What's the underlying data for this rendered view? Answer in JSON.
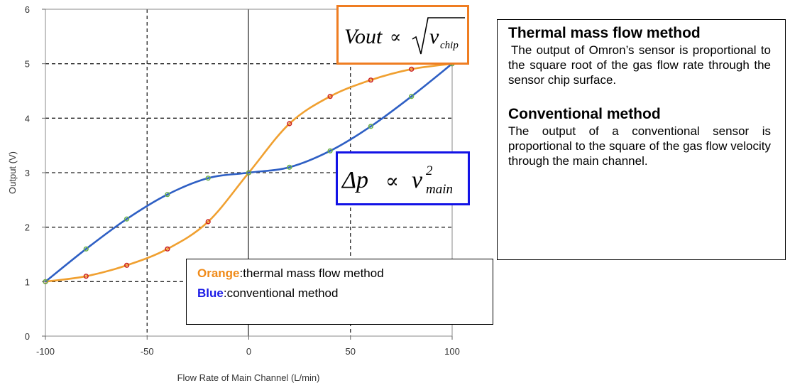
{
  "chart_data": {
    "type": "line",
    "xlabel": "Flow Rate of Main Channel (L/min)",
    "ylabel": "Output (V)",
    "xlim": [
      -100,
      100
    ],
    "ylim": [
      0,
      6
    ],
    "xticks": [
      -100,
      -50,
      0,
      50,
      100
    ],
    "xtick_labels": [
      "-100",
      "-50",
      "0",
      "50",
      "100"
    ],
    "yticks": [
      0,
      1,
      2,
      3,
      4,
      5,
      6
    ],
    "ytick_labels": [
      "0",
      "1",
      "2",
      "3",
      "4",
      "5",
      "6"
    ],
    "grid": "dashed",
    "series": [
      {
        "name": "thermal mass flow method",
        "color": "#f0a030",
        "marker_color": "#cc2222",
        "x": [
          -100,
          -80,
          -60,
          -40,
          -20,
          0,
          20,
          40,
          60,
          80,
          100
        ],
        "y": [
          1.0,
          1.1,
          1.3,
          1.6,
          2.1,
          3.0,
          3.9,
          4.4,
          4.7,
          4.9,
          5.0
        ]
      },
      {
        "name": "conventional method",
        "color": "#2e5fc4",
        "marker_color": "#6ab04c",
        "x": [
          -100,
          -80,
          -60,
          -40,
          -20,
          0,
          20,
          40,
          60,
          80,
          100
        ],
        "y": [
          1.0,
          1.6,
          2.15,
          2.6,
          2.9,
          3.0,
          3.1,
          3.4,
          3.85,
          4.4,
          5.0
        ]
      }
    ]
  },
  "equations": {
    "thermal": {
      "lhs": "Vout",
      "rel": "∝",
      "var": "v",
      "sub": "chip",
      "color": "#ef7d22"
    },
    "conventional": {
      "lhs": "Δp",
      "rel": "∝",
      "var": "v",
      "sup": "2",
      "sub": "main",
      "color": "#1313e6"
    }
  },
  "legend": {
    "orange_key": "Orange",
    "orange_text": "thermal mass flow method",
    "orange_color": "#f08a18",
    "blue_key": "Blue",
    "blue_text": "conventional method",
    "blue_color": "#1a1ae6",
    "separator": ":"
  },
  "description": {
    "thermal_title": "Thermal mass flow method",
    "thermal_text": "The output of Omron’s sensor is proportional to the square root of the gas flow rate through the sensor chip surface.",
    "conventional_title": "Conventional method",
    "conventional_text": "The output of a conventional sensor is proportional to the square of the gas flow velocity through the main channel."
  }
}
